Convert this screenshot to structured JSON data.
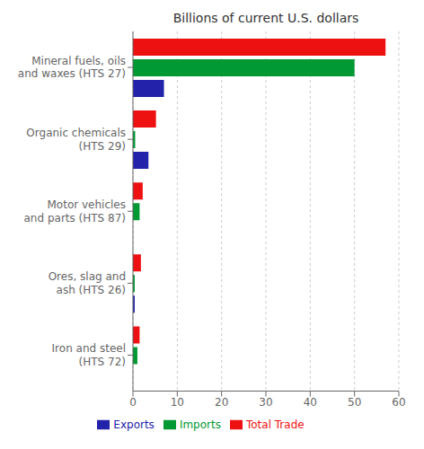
{
  "chart_data": {
    "type": "bar",
    "orientation": "horizontal",
    "title": "Billions of current U.S. dollars",
    "categories": [
      "Iron and steel\n(HTS 72)",
      "Ores, slag and\nash (HTS 26)",
      "Motor vehicles\nand parts (HTS 87)",
      "Organic chemicals\n(HTS 29)",
      "Mineral fuels, oils\nand waxes (HTS 27)"
    ],
    "series": [
      {
        "name": "Total Trade",
        "color": "#ee1111",
        "values": [
          1.5,
          1.8,
          2.2,
          5.2,
          57.0
        ]
      },
      {
        "name": "Imports",
        "color": "#009933",
        "values": [
          1.0,
          0.4,
          1.5,
          0.5,
          50.0
        ]
      },
      {
        "name": "Exports",
        "color": "#2222aa",
        "values": [
          0.0,
          0.4,
          0.0,
          3.5,
          7.0
        ]
      }
    ],
    "xlim": [
      0,
      60
    ],
    "xticks": [
      0,
      10,
      20,
      30,
      40,
      50,
      60
    ],
    "grid": true,
    "legend": "bottom"
  }
}
